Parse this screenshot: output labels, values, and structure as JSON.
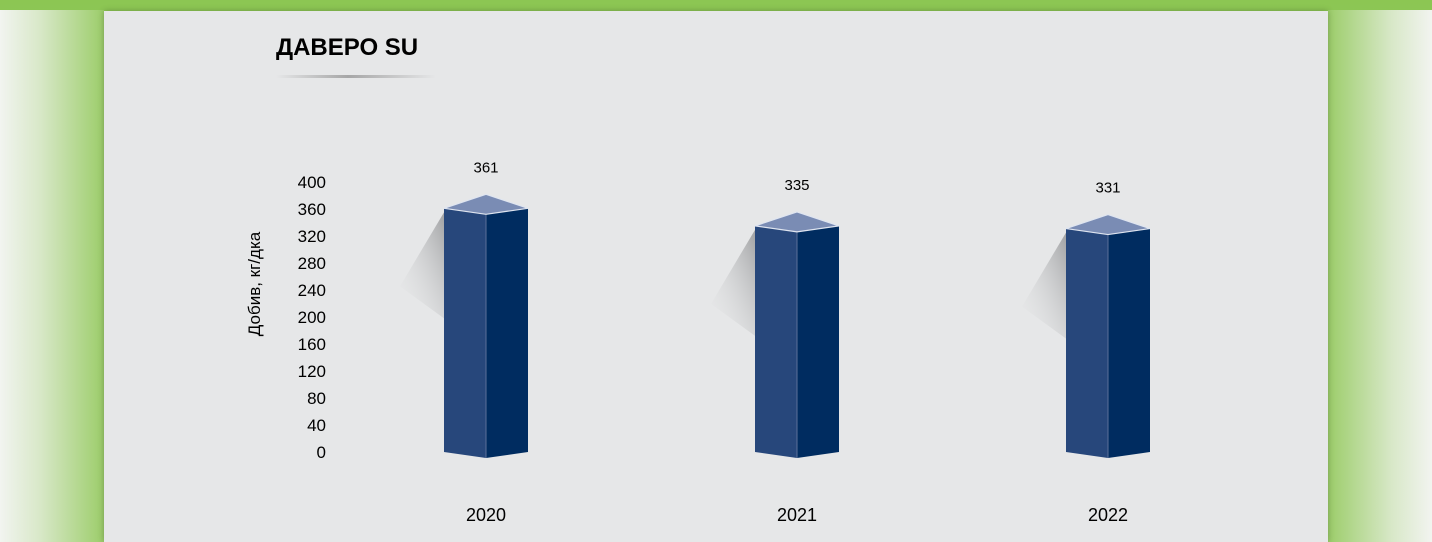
{
  "chart_data": {
    "type": "bar",
    "title": "ДАВЕРО SU",
    "ylabel": "Добив, кг/дка",
    "xlabel": "",
    "categories": [
      "2020",
      "2021",
      "2022"
    ],
    "values": [
      361,
      335,
      331
    ],
    "value_labels": [
      "361",
      "335",
      "331"
    ],
    "ylim": [
      0,
      400
    ],
    "yticks": [
      "0",
      "40",
      "80",
      "120",
      "160",
      "200",
      "240",
      "280",
      "320",
      "360",
      "400"
    ],
    "ytick_values": [
      0,
      40,
      80,
      120,
      160,
      200,
      240,
      280,
      320,
      360,
      400
    ],
    "grid": false,
    "legend": "none",
    "style": "3d-column",
    "colors": {
      "bar_front": "#27477b",
      "bar_side": "#002c60",
      "bar_top": "#7a8cb4",
      "panel": "#e6e7e8",
      "frame": "#8cc653"
    }
  }
}
